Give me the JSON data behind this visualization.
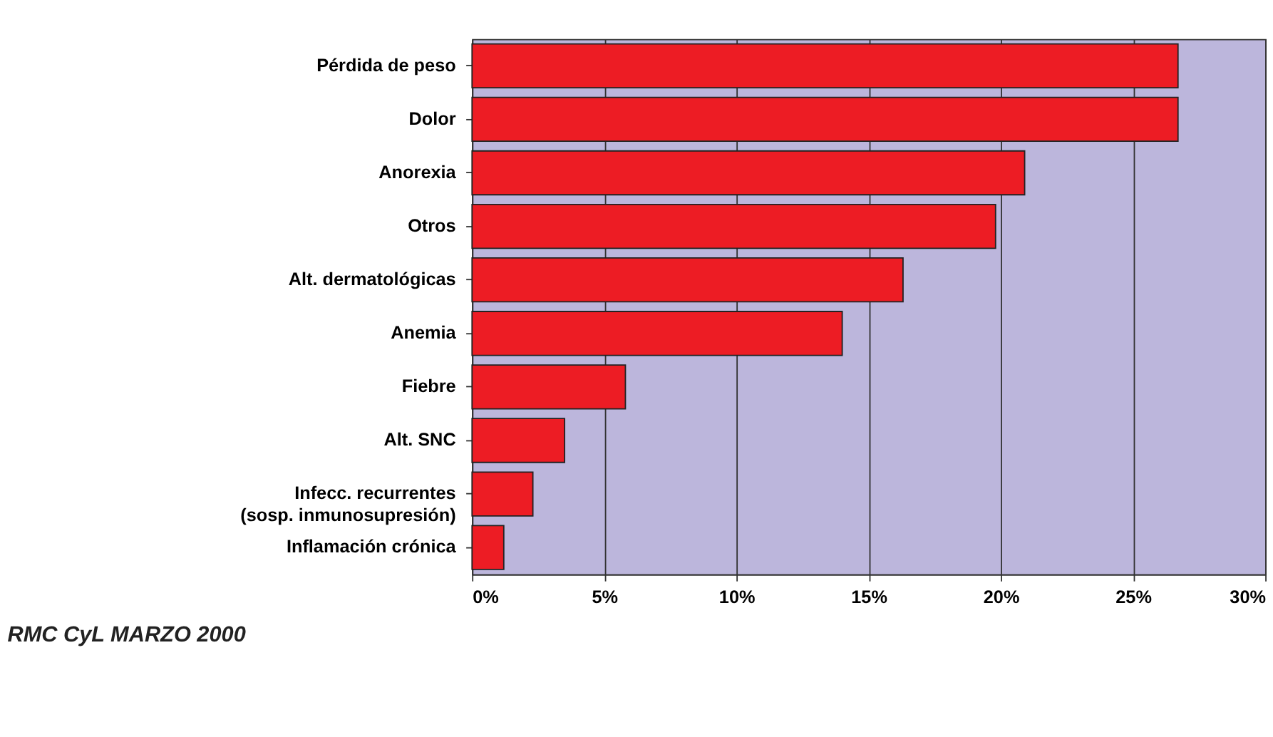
{
  "chart_data": {
    "type": "bar",
    "orientation": "horizontal",
    "categories": [
      "Pérdida de peso",
      "Dolor",
      "Anorexia",
      "Otros",
      "Alt. dermatológicas",
      "Anemia",
      "Fiebre",
      "Alt. SNC",
      "Infecc.  recurrentes\n(sosp. inmunosupresión)",
      "Inflamación crónica"
    ],
    "values": [
      26.7,
      26.7,
      20.9,
      19.8,
      16.3,
      14.0,
      5.8,
      3.5,
      2.3,
      1.2
    ],
    "color": "#ed1c24",
    "xlim": [
      0,
      30
    ],
    "xticks": [
      {
        "value": 0,
        "label": "0%"
      },
      {
        "value": 5,
        "label": "5%"
      },
      {
        "value": 10,
        "label": "10%"
      },
      {
        "value": 15,
        "label": "15%"
      },
      {
        "value": 20,
        "label": "20%"
      },
      {
        "value": 25,
        "label": "25%"
      },
      {
        "value": 30,
        "label": "30%"
      }
    ],
    "grid": "x",
    "annotations": [
      "RMC CyL MARZO 2000"
    ]
  }
}
